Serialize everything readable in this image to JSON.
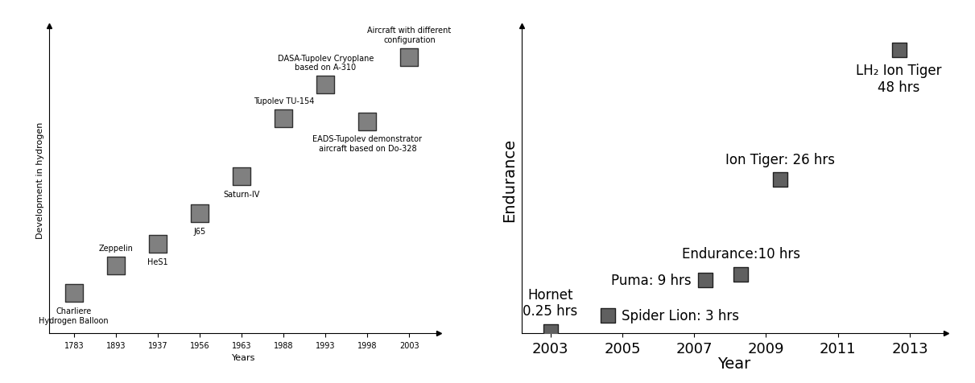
{
  "chart_data": [
    {
      "type": "scatter",
      "xlabel": "Years",
      "ylabel": "Development in hydrogen",
      "categories": [
        "1783",
        "1893",
        "1937",
        "1956",
        "1963",
        "1988",
        "1993",
        "1998",
        "2003"
      ],
      "values": [
        1.3,
        2.2,
        2.9,
        3.9,
        5.1,
        7.0,
        8.1,
        6.9,
        9.0
      ],
      "annotations": [
        "Charliere\nHydrogen Balloon",
        "Zeppelin",
        "HeS1",
        "J65",
        "Saturn-IV",
        "Tupolev TU-154",
        "DASA-Tupolev Cryoplane\nbased on A-310",
        "EADS-Tupolev demonstrator\naircraft based on Do-328",
        "Aircraft with different\nconfiguration"
      ],
      "ylim": [
        0,
        10
      ],
      "tick_labels": "x",
      "marker": "square",
      "color": "#808080"
    },
    {
      "type": "scatter",
      "xlabel": "Year",
      "ylabel": "Endurance",
      "x": [
        2003,
        2004.6,
        2007.3,
        2008.3,
        2009.4,
        2012.7
      ],
      "values": [
        0.25,
        3,
        9,
        10,
        26,
        48
      ],
      "value_labels": [
        "Hornet\n0.25 hrs",
        "Spider Lion: 3 hrs",
        "Puma: 9 hrs",
        "Endurance:10 hrs",
        "Ion Tiger: 26 hrs",
        "LH₂ Ion Tiger\n48 hrs"
      ],
      "data_labels": true,
      "xlim": [
        2002.2,
        2014
      ],
      "xticks": [
        2003,
        2005,
        2007,
        2009,
        2011,
        2013
      ],
      "ylim": [
        0,
        52
      ],
      "tick_labels": "x",
      "marker": "square",
      "color": "#606060"
    }
  ]
}
